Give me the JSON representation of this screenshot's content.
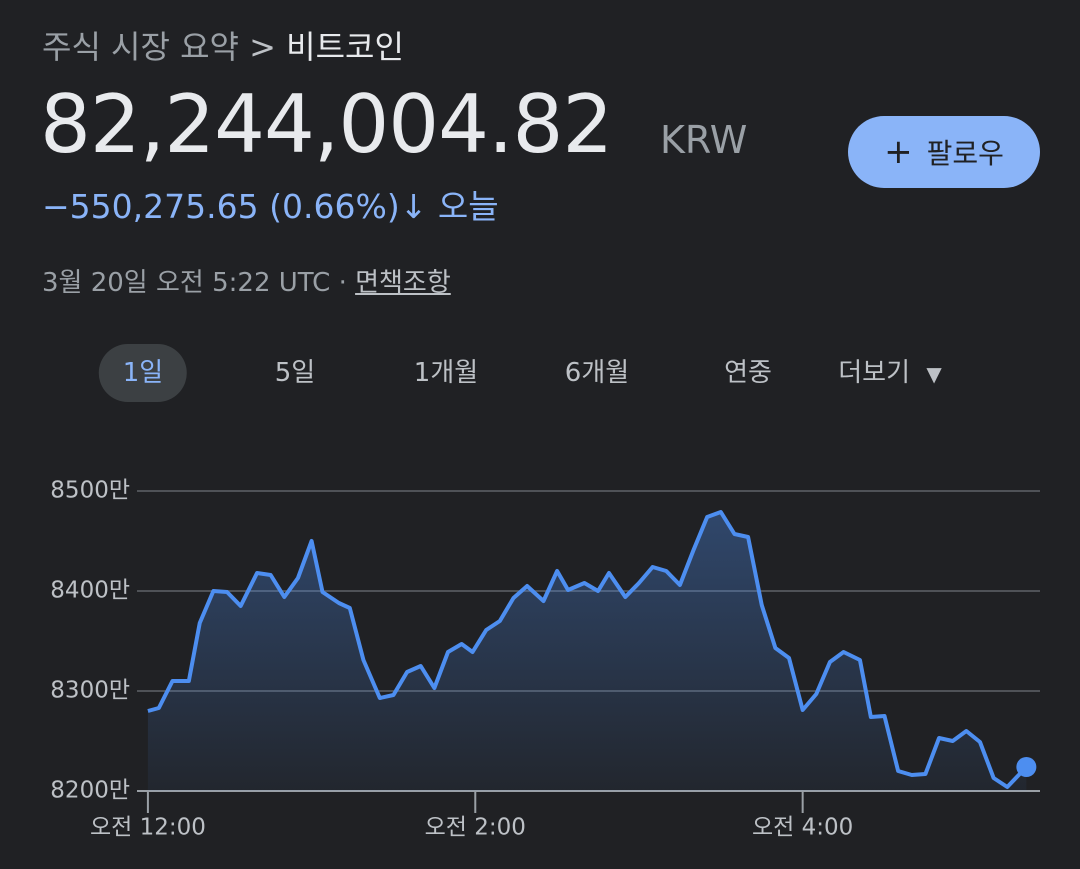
{
  "header": {
    "breadcrumb": "주식 시장 요약",
    "separator": ">",
    "current": "비트코인",
    "price": "82,244,004.82",
    "currency": "KRW",
    "follow": "팔로우",
    "change": "−550,275.65",
    "percent": "(0.66%)",
    "period": "오늘",
    "timestamp": "3월 20일 오전 5:22 UTC",
    "dot": "·",
    "disclaimer": "면책조항"
  },
  "tabs": [
    "1일",
    "5일",
    "1개월",
    "6개월",
    "연중",
    "더보기"
  ],
  "chart_data": {
    "type": "line",
    "color": "#4d8ef0",
    "x": [
      0,
      4,
      9,
      15,
      19,
      24,
      29,
      34,
      40,
      45,
      50,
      55,
      60,
      64,
      70,
      74,
      79,
      85,
      90,
      95,
      100,
      105,
      110,
      115,
      119,
      124,
      129,
      134,
      139,
      145,
      150,
      154,
      160,
      165,
      169,
      175,
      180,
      185,
      190,
      195,
      200,
      205,
      210,
      215,
      220,
      225,
      230,
      235,
      240,
      245,
      250,
      255,
      261,
      265,
      270,
      275,
      280,
      285,
      290,
      295,
      300,
      305,
      310,
      315,
      322
    ],
    "values": [
      82800000,
      82830000,
      83100000,
      83100000,
      83680000,
      84000000,
      83990000,
      83850000,
      84180000,
      84160000,
      83940000,
      84130000,
      84500000,
      83990000,
      83880000,
      83830000,
      83310000,
      82930000,
      82960000,
      83190000,
      83250000,
      83030000,
      83390000,
      83470000,
      83390000,
      83610000,
      83700000,
      83930000,
      84050000,
      83900000,
      84200000,
      84010000,
      84080000,
      84000000,
      84180000,
      83940000,
      84080000,
      84240000,
      84200000,
      84060000,
      84410000,
      84740000,
      84790000,
      84570000,
      84540000,
      83860000,
      83430000,
      83330000,
      82810000,
      82970000,
      83290000,
      83390000,
      83310000,
      82740000,
      82750000,
      82200000,
      82160000,
      82170000,
      82530000,
      82500000,
      82600000,
      82490000,
      82130000,
      82040000,
      82240000
    ],
    "xlim": [
      -4,
      327
    ],
    "xticks": [
      {
        "value": 0,
        "label": "오전 12:00"
      },
      {
        "value": 120,
        "label": "오전 2:00"
      },
      {
        "value": 240,
        "label": "오전 4:00"
      }
    ],
    "ylim": [
      82000000,
      85000000
    ],
    "yticks": [
      {
        "value": 82000000,
        "label": "8200만"
      },
      {
        "value": 83000000,
        "label": "8300만"
      },
      {
        "value": 84000000,
        "label": "8400만"
      },
      {
        "value": 85000000,
        "label": "8500만"
      }
    ],
    "grid": true
  }
}
